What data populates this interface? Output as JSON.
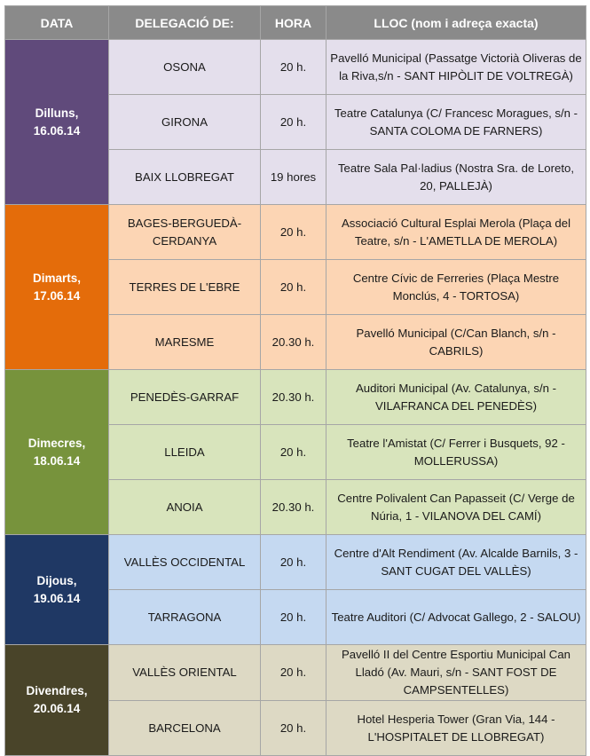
{
  "headers": {
    "date": "DATA",
    "delegation": "DELEGACIÓ DE:",
    "time": "HORA",
    "place": "LLOC (nom i adreça exacta)"
  },
  "colors": {
    "header": "#8a8a8a",
    "border": "#a6a6a6"
  },
  "days": [
    {
      "date_line1": "Dilluns,",
      "date_line2": "16.06.14",
      "color": "#604a7b",
      "cell_color": "#e4dfec",
      "rows": [
        {
          "delegation": "OSONA",
          "time": "20 h.",
          "place": "Pavelló Municipal (Passatge Victorià Oliveras de la Riva,s/n - SANT HIPÒLIT DE VOLTREGÀ)"
        },
        {
          "delegation": "GIRONA",
          "time": "20 h.",
          "place": "Teatre Catalunya (C/ Francesc Moragues, s/n - SANTA COLOMA DE FARNERS)"
        },
        {
          "delegation": "BAIX LLOBREGAT",
          "time": "19 hores",
          "place": "Teatre Sala Pal·ladius (Nostra Sra. de Loreto, 20, PALLEJÀ)"
        }
      ]
    },
    {
      "date_line1": "Dimarts,",
      "date_line2": "17.06.14",
      "color": "#e46c0a",
      "cell_color": "#fcd5b4",
      "rows": [
        {
          "delegation": "BAGES-BERGUEDÀ-CERDANYA",
          "time": "20 h.",
          "place": "Associació Cultural Esplai Merola (Plaça del Teatre, s/n - L'AMETLLA DE MEROLA)"
        },
        {
          "delegation": "TERRES DE L'EBRE",
          "time": "20 h.",
          "place": "Centre Cívic de Ferreries (Plaça Mestre Monclús, 4 - TORTOSA)"
        },
        {
          "delegation": "MARESME",
          "time": "20.30 h.",
          "place": "Pavelló Municipal (C/Can Blanch, s/n - CABRILS)"
        }
      ]
    },
    {
      "date_line1": "Dimecres,",
      "date_line2": "18.06.14",
      "color": "#77933c",
      "cell_color": "#d8e4bc",
      "rows": [
        {
          "delegation": "PENEDÈS-GARRAF",
          "time": "20.30 h.",
          "place": "Auditori Municipal (Av. Catalunya, s/n - VILAFRANCA DEL PENEDÈS)"
        },
        {
          "delegation": "LLEIDA",
          "time": "20 h.",
          "place": "Teatre l'Amistat (C/ Ferrer i Busquets, 92 - MOLLERUSSA)"
        },
        {
          "delegation": "ANOIA",
          "time": "20.30 h.",
          "place": "Centre Polivalent Can Papasseit (C/ Verge de Núria, 1 - VILANOVA DEL CAMÍ)"
        }
      ]
    },
    {
      "date_line1": "Dijous,",
      "date_line2": "19.06.14",
      "color": "#1f3864",
      "cell_color": "#c5d9f1",
      "rows": [
        {
          "delegation": "VALLÈS OCCIDENTAL",
          "time": "20 h.",
          "place": "Centre d'Alt Rendiment (Av. Alcalde Barnils, 3 - SANT CUGAT DEL VALLÈS)"
        },
        {
          "delegation": "TARRAGONA",
          "time": "20 h.",
          "place": "Teatre Auditori (C/ Advocat Gallego, 2 - SALOU)"
        }
      ]
    },
    {
      "date_line1": "Divendres,",
      "date_line2": "20.06.14",
      "color": "#494429",
      "cell_color": "#ddd9c4",
      "rows": [
        {
          "delegation": "VALLÈS ORIENTAL",
          "time": "20 h.",
          "place": "Pavelló II del Centre Esportiu Municipal Can Lladó (Av. Mauri, s/n - SANT FOST DE CAMPSENTELLES)"
        },
        {
          "delegation": "BARCELONA",
          "time": "20 h.",
          "place": "Hotel Hesperia Tower (Gran Via, 144 - L'HOSPITALET DE LLOBREGAT)"
        }
      ]
    }
  ]
}
